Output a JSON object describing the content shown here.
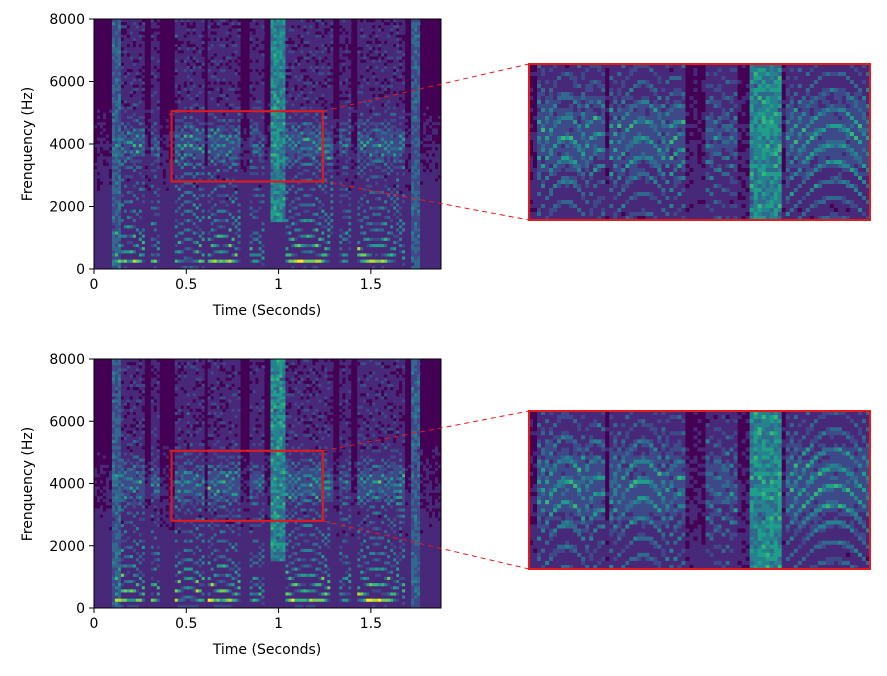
{
  "colors": {
    "background": "#440154",
    "highlight_box": "#e31a1c",
    "colormap": [
      "#440154",
      "#482878",
      "#3e4989",
      "#31688e",
      "#26828e",
      "#1f9e89",
      "#35b779",
      "#6ece58",
      "#b5de2b",
      "#fde725"
    ]
  },
  "chart_data": [
    {
      "type": "heatmap",
      "xlabel": "Time (Seconds)",
      "ylabel": "Frenquency (Hz)",
      "xlim": [
        0,
        1.88
      ],
      "ylim": [
        0,
        8000
      ],
      "x_ticks": [
        0,
        0.5,
        1,
        1.5
      ],
      "x_tick_labels": [
        "0",
        "0.5",
        "1",
        "1.5"
      ],
      "y_ticks": [
        0,
        2000,
        4000,
        6000,
        8000
      ],
      "y_tick_labels": [
        "0",
        "2000",
        "4000",
        "6000",
        "8000"
      ],
      "zoom_region": {
        "time": [
          0.42,
          1.24
        ],
        "frequency": [
          2800,
          5050
        ]
      },
      "voiced_segments": [
        {
          "t": [
            0.12,
            0.28
          ],
          "f0": 230,
          "energy": 0.9
        },
        {
          "t": [
            0.3,
            0.36
          ],
          "f0": 210,
          "energy": 0.75
        },
        {
          "t": [
            0.44,
            0.6
          ],
          "f0": 260,
          "energy": 0.95
        },
        {
          "t": [
            0.61,
            0.8
          ],
          "f0": 225,
          "energy": 0.92
        },
        {
          "t": [
            0.84,
            0.92
          ],
          "f0": 200,
          "energy": 0.7
        },
        {
          "t": [
            1.04,
            1.3
          ],
          "f0": 220,
          "energy": 0.95
        },
        {
          "t": [
            1.33,
            1.4
          ],
          "f0": 200,
          "energy": 0.7
        },
        {
          "t": [
            1.42,
            1.68
          ],
          "f0": 210,
          "energy": 0.9
        }
      ],
      "noise_bursts": [
        {
          "t": [
            0.95,
            1.03
          ],
          "f": [
            1500,
            8000
          ],
          "energy": 0.6
        },
        {
          "t": [
            0.1,
            0.15
          ],
          "f": [
            0,
            8000
          ],
          "energy": 0.4
        },
        {
          "t": [
            1.72,
            1.76
          ],
          "f": [
            0,
            8000
          ],
          "energy": 0.4
        }
      ]
    },
    {
      "type": "heatmap",
      "xlabel": "Time (Seconds)",
      "ylabel": "Frenquency (Hz)",
      "xlim": [
        0,
        1.88
      ],
      "ylim": [
        0,
        8000
      ],
      "x_ticks": [
        0,
        0.5,
        1,
        1.5
      ],
      "x_tick_labels": [
        "0",
        "0.5",
        "1",
        "1.5"
      ],
      "y_ticks": [
        0,
        2000,
        4000,
        6000,
        8000
      ],
      "y_tick_labels": [
        "0",
        "2000",
        "4000",
        "6000",
        "8000"
      ],
      "zoom_region": {
        "time": [
          0.42,
          1.24
        ],
        "frequency": [
          2800,
          5050
        ]
      },
      "voiced_segments": [
        {
          "t": [
            0.12,
            0.28
          ],
          "f0": 235,
          "energy": 0.92
        },
        {
          "t": [
            0.3,
            0.36
          ],
          "f0": 215,
          "energy": 0.78
        },
        {
          "t": [
            0.44,
            0.6
          ],
          "f0": 265,
          "energy": 0.97
        },
        {
          "t": [
            0.61,
            0.8
          ],
          "f0": 230,
          "energy": 0.94
        },
        {
          "t": [
            0.84,
            0.92
          ],
          "f0": 205,
          "energy": 0.72
        },
        {
          "t": [
            1.04,
            1.3
          ],
          "f0": 225,
          "energy": 0.97
        },
        {
          "t": [
            1.33,
            1.4
          ],
          "f0": 205,
          "energy": 0.72
        },
        {
          "t": [
            1.42,
            1.68
          ],
          "f0": 215,
          "energy": 0.92
        }
      ],
      "noise_bursts": [
        {
          "t": [
            0.95,
            1.03
          ],
          "f": [
            1500,
            8000
          ],
          "energy": 0.6
        },
        {
          "t": [
            0.1,
            0.15
          ],
          "f": [
            0,
            8000
          ],
          "energy": 0.4
        },
        {
          "t": [
            1.72,
            1.76
          ],
          "f": [
            0,
            8000
          ],
          "energy": 0.4
        }
      ]
    }
  ]
}
